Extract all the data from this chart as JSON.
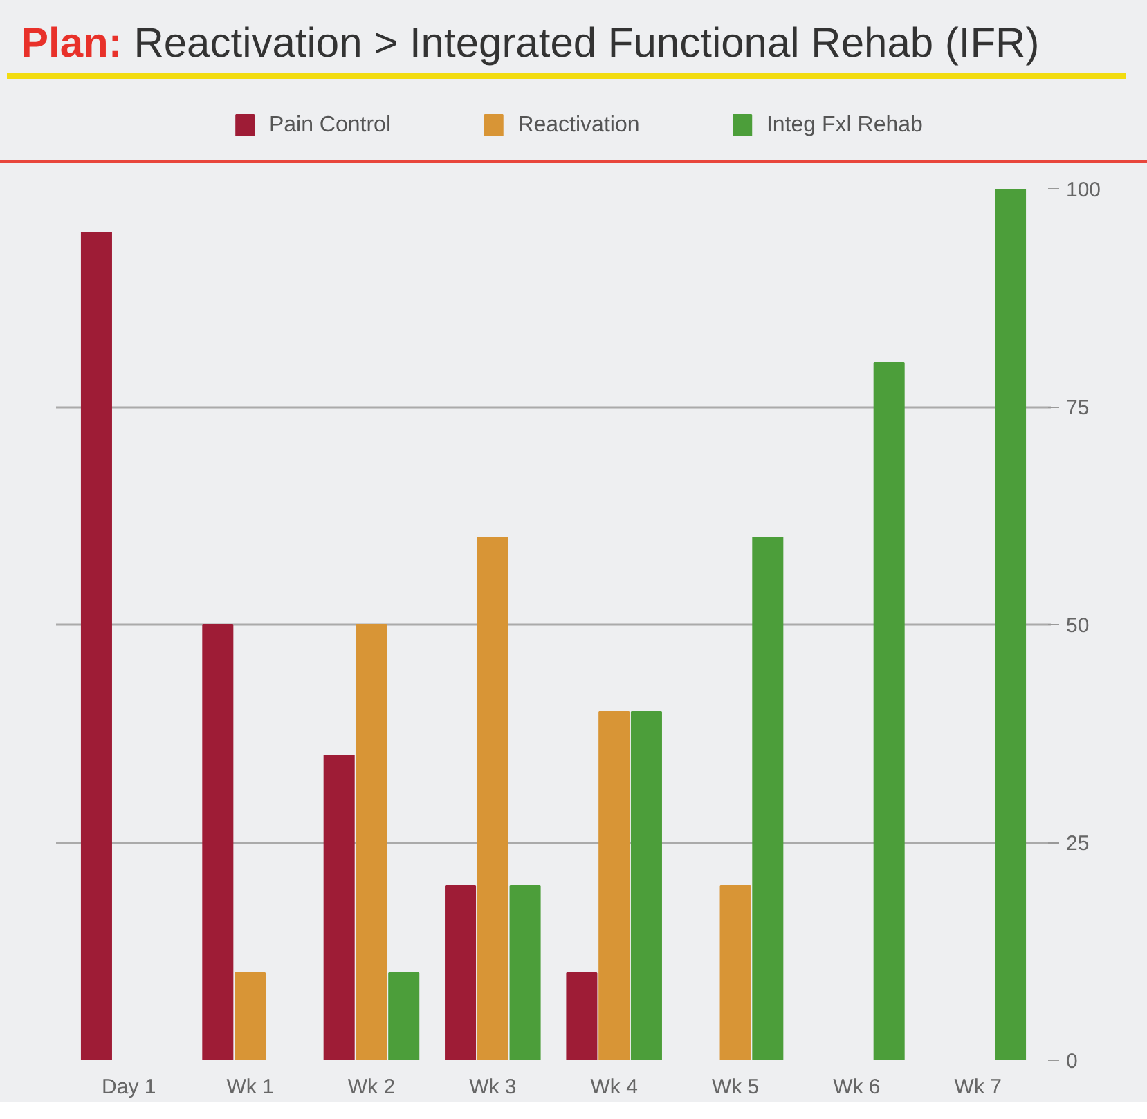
{
  "chart_data": {
    "type": "bar",
    "title": "Plan: Reactivation > Integrated Functional Rehab (IFR)",
    "categories": [
      "Day 1",
      "Wk 1",
      "Wk 2",
      "Wk 3",
      "Wk 4",
      "Wk 5",
      "Wk 6",
      "Wk 7"
    ],
    "series": [
      {
        "name": "Pain Control",
        "color": "#9e1c36",
        "values": [
          95,
          50,
          35,
          20,
          10,
          null,
          null,
          null
        ]
      },
      {
        "name": "Reactivation",
        "color": "#d89536",
        "values": [
          null,
          10,
          50,
          60,
          40,
          20,
          null,
          null
        ]
      },
      {
        "name": "Integ Fxl Rehab",
        "color": "#4c9e3a",
        "values": [
          null,
          null,
          10,
          20,
          40,
          60,
          80,
          100
        ]
      }
    ],
    "ylim": [
      0,
      100
    ],
    "yticks": [
      0,
      25,
      50,
      75,
      100
    ],
    "grid": "y",
    "legend": "top"
  }
}
